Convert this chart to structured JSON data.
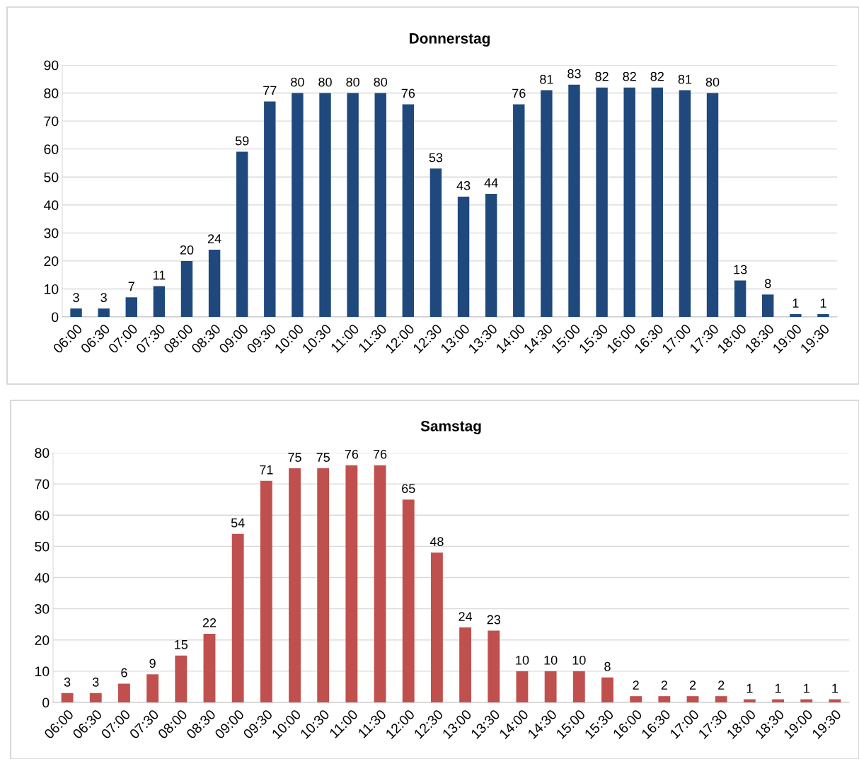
{
  "chart_data": [
    {
      "type": "bar",
      "title": "Donnerstag",
      "categories": [
        "06:00",
        "06:30",
        "07:00",
        "07:30",
        "08:00",
        "08:30",
        "09:00",
        "09:30",
        "10:00",
        "10:30",
        "11:00",
        "11:30",
        "12:00",
        "12:30",
        "13:00",
        "13:30",
        "14:00",
        "14:30",
        "15:00",
        "15:30",
        "16:00",
        "16:30",
        "17:00",
        "17:30",
        "18:00",
        "18:30",
        "19:00",
        "19:30"
      ],
      "values": [
        3,
        3,
        7,
        11,
        20,
        24,
        59,
        77,
        80,
        80,
        80,
        80,
        76,
        53,
        43,
        44,
        76,
        81,
        83,
        82,
        82,
        82,
        81,
        80,
        13,
        8,
        1,
        1
      ],
      "color": "#1f497d",
      "ylim": [
        0,
        90
      ],
      "yticks": [
        0,
        10,
        20,
        30,
        40,
        50,
        60,
        70,
        80,
        90
      ],
      "grid": "y",
      "data_labels": true
    },
    {
      "type": "bar",
      "title": "Samstag",
      "categories": [
        "06:00",
        "06:30",
        "07:00",
        "07:30",
        "08:00",
        "08:30",
        "09:00",
        "09:30",
        "10:00",
        "10:30",
        "11:00",
        "11:30",
        "12:00",
        "12:30",
        "13:00",
        "13:30",
        "14:00",
        "14:30",
        "15:00",
        "15:30",
        "16:00",
        "16:30",
        "17:00",
        "17:30",
        "18:00",
        "18:30",
        "19:00",
        "19:30"
      ],
      "values": [
        3,
        3,
        6,
        9,
        15,
        22,
        54,
        71,
        75,
        75,
        76,
        76,
        65,
        48,
        24,
        23,
        10,
        10,
        10,
        8,
        2,
        2,
        2,
        2,
        1,
        1,
        1,
        1
      ],
      "color": "#c0504d",
      "ylim": [
        0,
        80
      ],
      "yticks": [
        0,
        10,
        20,
        30,
        40,
        50,
        60,
        70,
        80
      ],
      "grid": "y",
      "data_labels": true
    }
  ]
}
